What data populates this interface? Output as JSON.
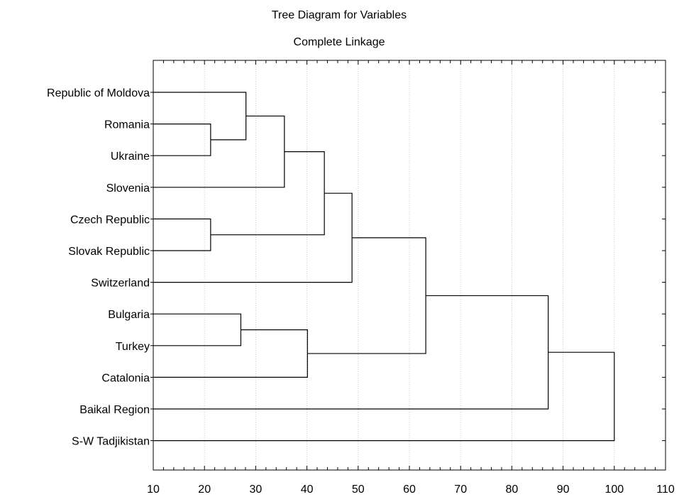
{
  "chart_data": {
    "type": "dendrogram",
    "title": "Tree Diagram for  Variables",
    "subtitle": "Complete Linkage",
    "xlim": [
      10,
      110
    ],
    "xticks": [
      10,
      20,
      30,
      40,
      50,
      60,
      70,
      80,
      90,
      100,
      110
    ],
    "grid": true,
    "leaves": [
      "Republic of Moldova",
      "Romania",
      "Ukraine",
      "Slovenia",
      "Czech Republic",
      "Slovak Republic",
      "Switzerland",
      "Bulgaria",
      "Turkey",
      "Catalonia",
      "Baikal Region",
      "S-W Tadjikistan"
    ],
    "merges": [
      {
        "children": [
          "Romania",
          "Ukraine"
        ],
        "height": 21.2
      },
      {
        "children": [
          "Czech Republic",
          "Slovak Republic"
        ],
        "height": 21.2
      },
      {
        "children": [
          "Bulgaria",
          "Turkey"
        ],
        "height": 27.1
      },
      {
        "children": [
          "Republic of Moldova",
          "m0"
        ],
        "height": 28.1
      },
      {
        "children": [
          "m3",
          "Slovenia"
        ],
        "height": 35.6
      },
      {
        "children": [
          "m2",
          "Catalonia"
        ],
        "height": 40.1
      },
      {
        "children": [
          "m4",
          "m1"
        ],
        "height": 43.4
      },
      {
        "children": [
          "m6",
          "Switzerland"
        ],
        "height": 48.8
      },
      {
        "children": [
          "m7",
          "m5"
        ],
        "height": 63.2
      },
      {
        "children": [
          "m8",
          "Baikal Region"
        ],
        "height": 87.1
      },
      {
        "children": [
          "m9",
          "S-W Tadjikistan"
        ],
        "height": 100.0
      }
    ]
  }
}
